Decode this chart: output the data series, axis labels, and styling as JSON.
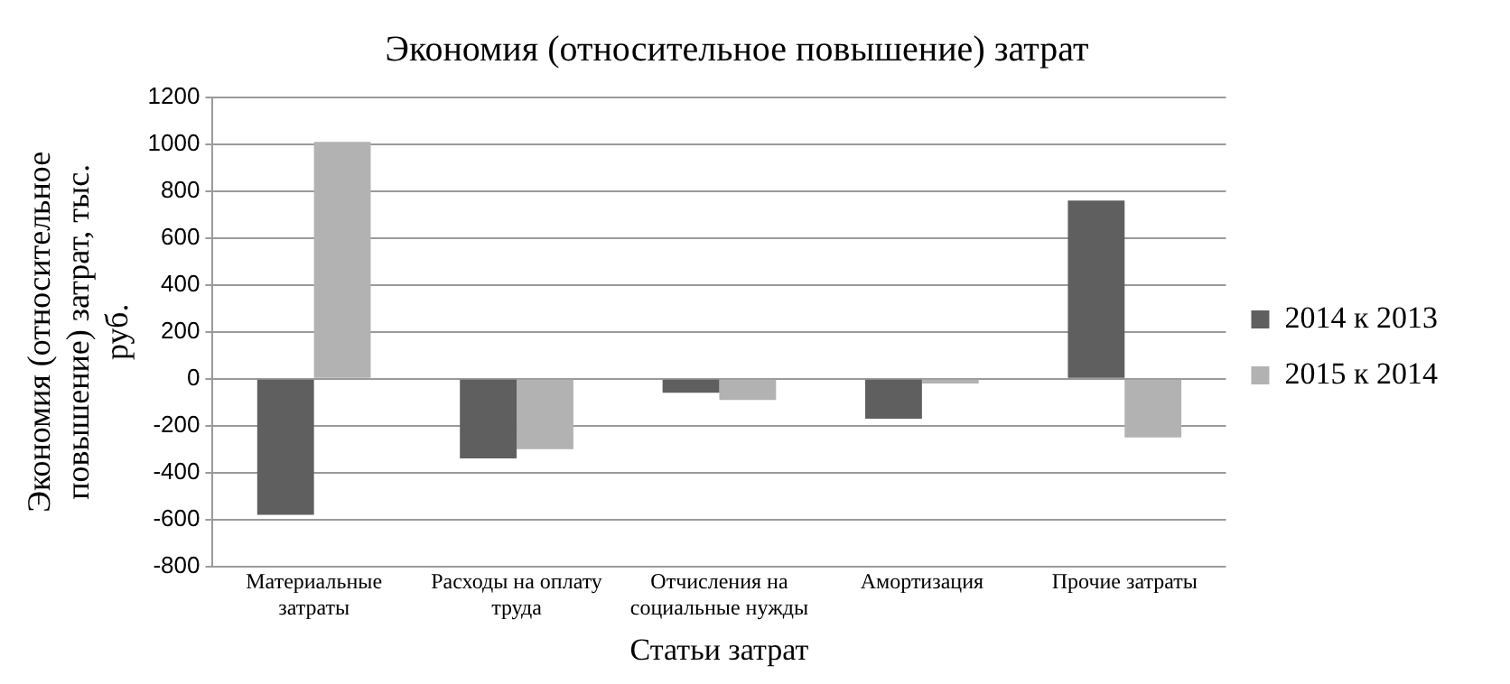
{
  "chart_data": {
    "type": "bar",
    "title": "Экономия (относительное повышение) затрат",
    "xlabel": "Статьи затрат",
    "ylabel": "Экономия (относительное повышение) затрат, тыс. руб.",
    "categories": [
      "Материальные затраты",
      "Расходы на оплату труда",
      "Отчисления на социальные нужды",
      "Амортизация",
      "Прочие затраты"
    ],
    "series": [
      {
        "name": "2014 к 2013",
        "color": "#5f5f5f",
        "values": [
          -580,
          -340,
          -60,
          -170,
          760
        ]
      },
      {
        "name": "2015 к 2014",
        "color": "#b2b2b2",
        "values": [
          1010,
          -300,
          -90,
          -20,
          -250
        ]
      }
    ],
    "ylim": [
      -800,
      1200
    ],
    "yticks": [
      -800,
      -600,
      -400,
      -200,
      0,
      200,
      400,
      600,
      800,
      1000,
      1200
    ],
    "grid": "y",
    "legend": "right"
  }
}
